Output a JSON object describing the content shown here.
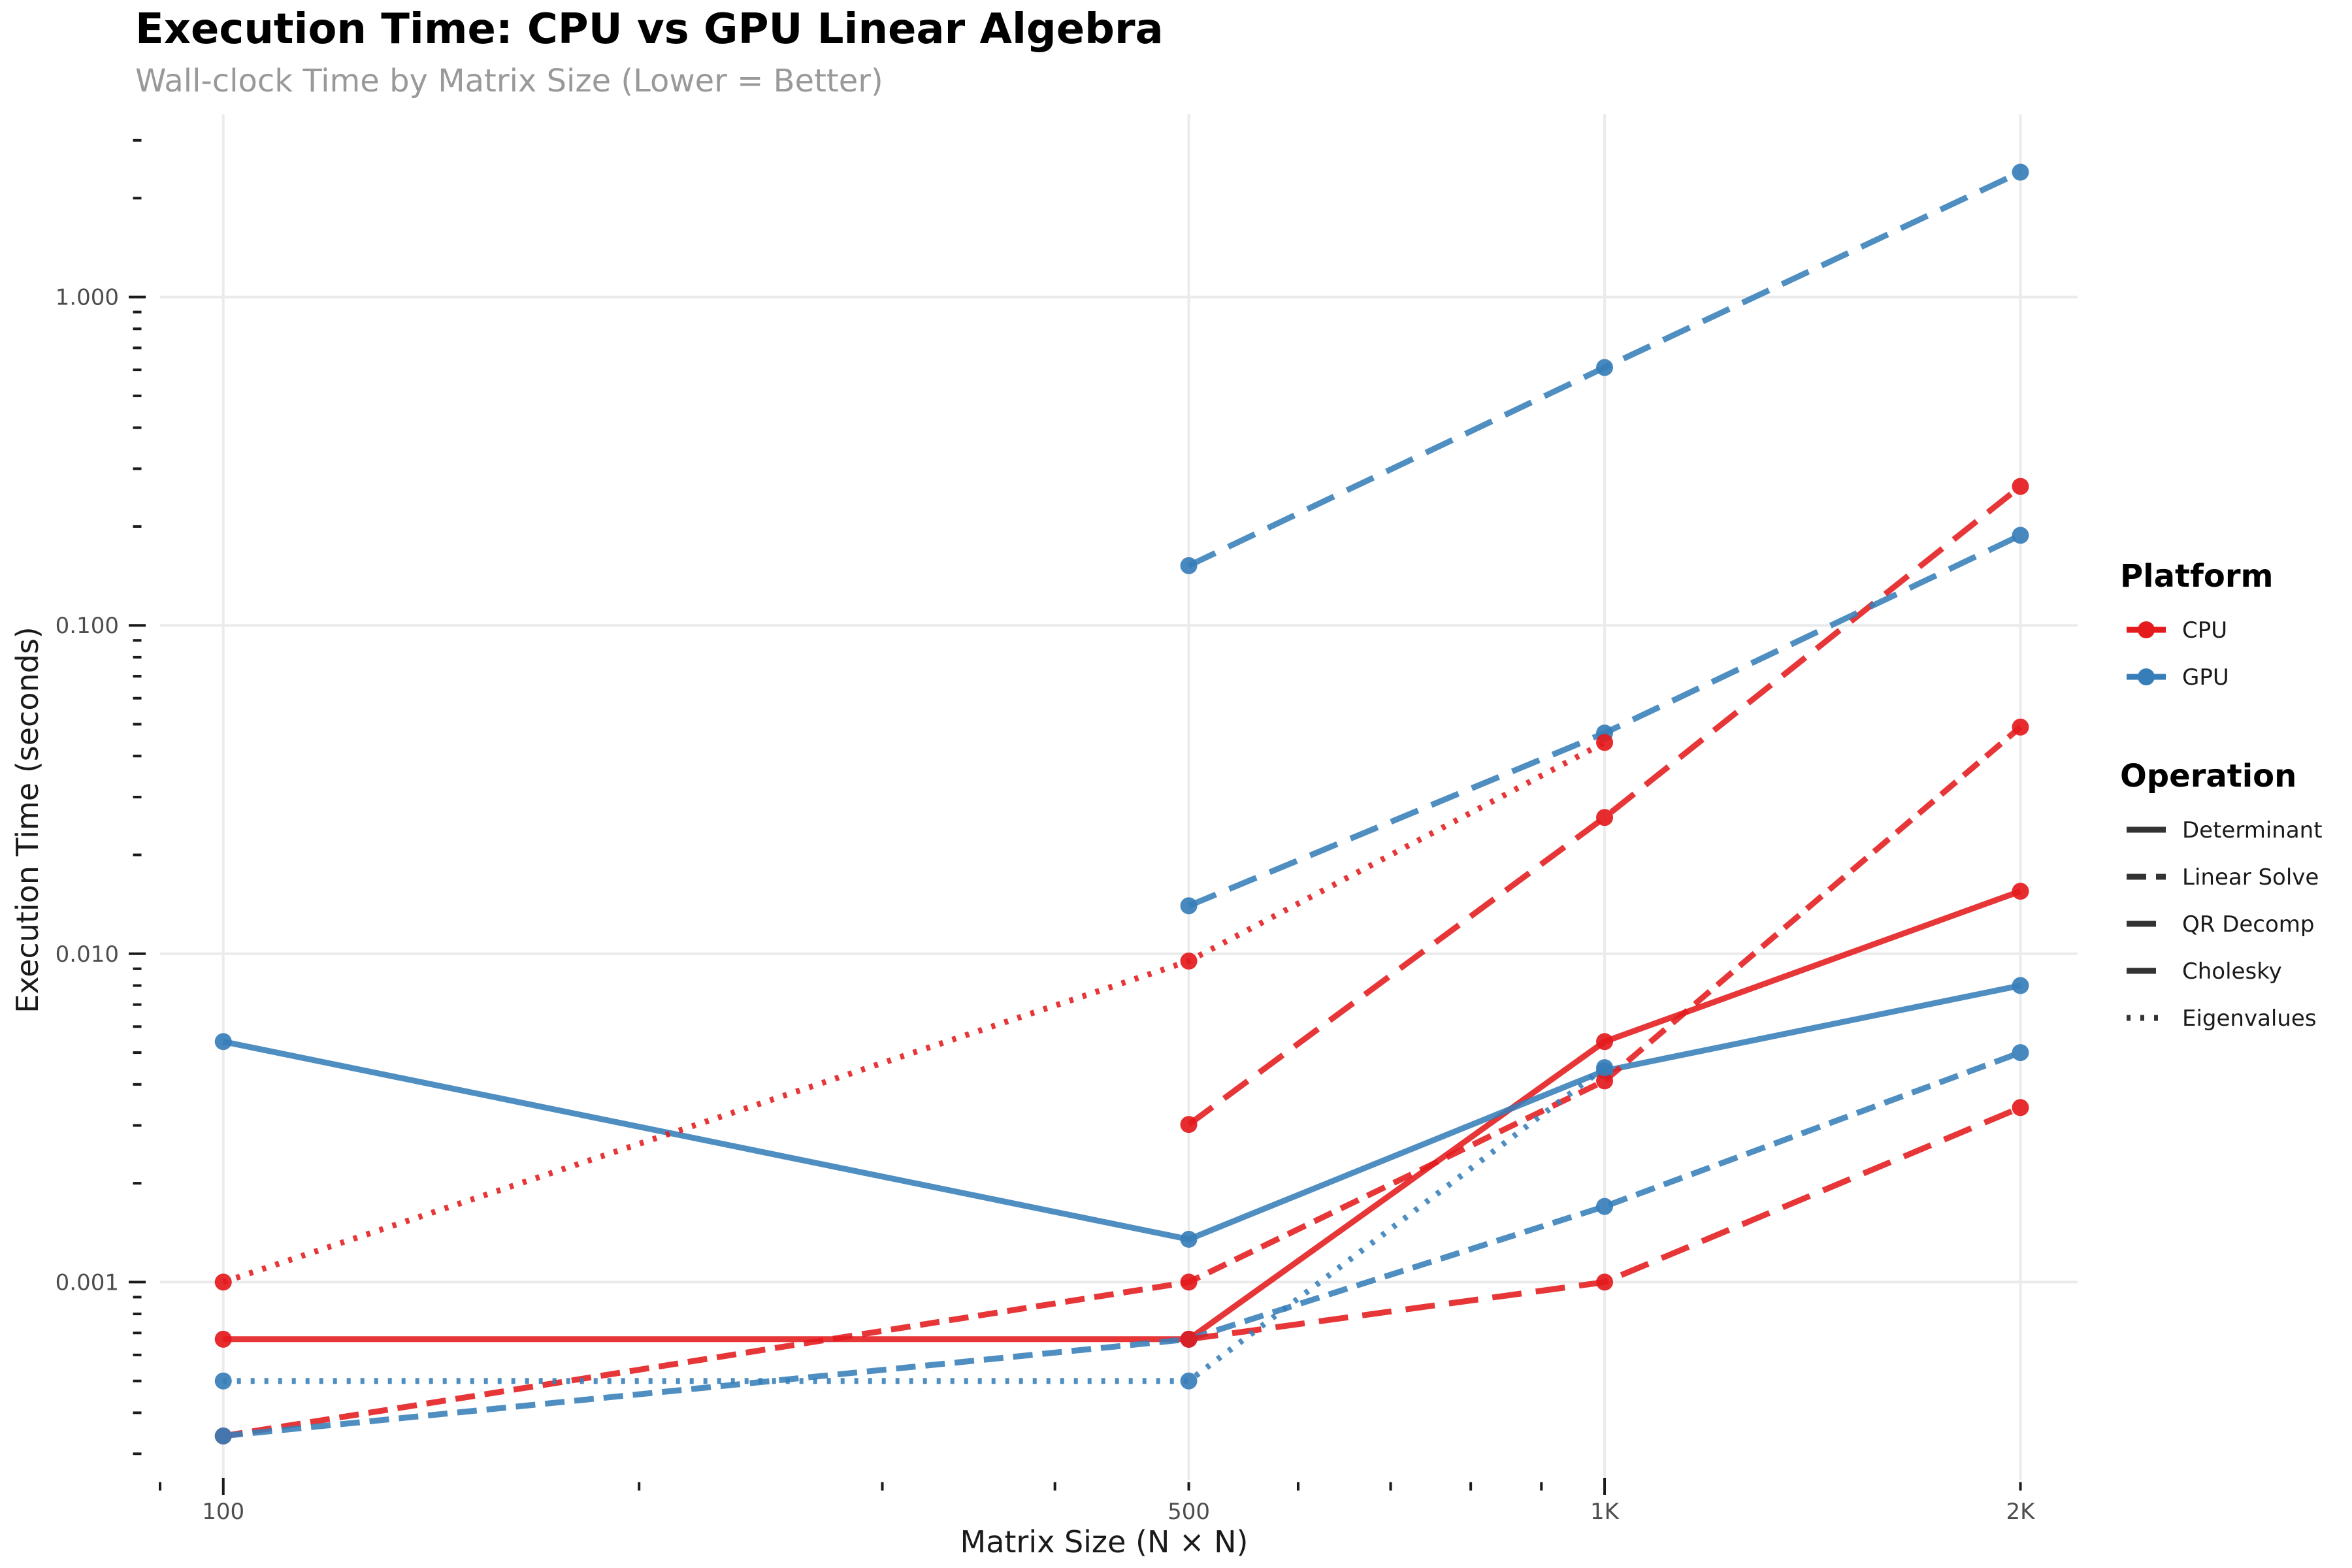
{
  "chart_data": {
    "type": "line",
    "title": "Execution Time: CPU vs GPU Linear Algebra",
    "subtitle": "Wall-clock Time by Matrix Size (Lower = Better)",
    "xlabel": "Matrix Size (N × N)",
    "ylabel": "Execution Time (seconds)",
    "x_scale": "log",
    "y_scale": "log",
    "x_ticks": [
      {
        "value": 100,
        "label": "100"
      },
      {
        "value": 500,
        "label": "500"
      },
      {
        "value": 1000,
        "label": "1K"
      },
      {
        "value": 2000,
        "label": "2K"
      }
    ],
    "y_ticks": [
      {
        "value": 0.001,
        "label": "0.001"
      },
      {
        "value": 0.01,
        "label": "0.010"
      },
      {
        "value": 0.1,
        "label": "0.100"
      },
      {
        "value": 1,
        "label": "1.000"
      }
    ],
    "xlim": [
      90,
      2200
    ],
    "ylim": [
      0.00025,
      3.6
    ],
    "grid": true,
    "legend_position": "right",
    "colors": {
      "CPU": "#e41a1c",
      "GPU": "#377eb8"
    },
    "legend": {
      "platform_title": "Platform",
      "platform_items": [
        {
          "label": "CPU",
          "color": "#e41a1c"
        },
        {
          "label": "GPU",
          "color": "#377eb8"
        }
      ],
      "operation_title": "Operation",
      "operation_items": [
        {
          "label": "Determinant",
          "dash": "solid"
        },
        {
          "label": "Linear Solve",
          "dash": "dashed"
        },
        {
          "label": "QR Decomp",
          "dash": "longdash"
        },
        {
          "label": "Cholesky",
          "dash": "longdash"
        },
        {
          "label": "Eigenvalues",
          "dash": "dotted"
        }
      ]
    },
    "series": [
      {
        "platform": "CPU",
        "operation": "Determinant",
        "dash": "solid",
        "points": [
          {
            "x": 100,
            "y": 0.00067
          },
          {
            "x": 500,
            "y": 0.00067
          },
          {
            "x": 1000,
            "y": 0.0054
          },
          {
            "x": 2000,
            "y": 0.0155
          }
        ]
      },
      {
        "platform": "GPU",
        "operation": "Determinant",
        "dash": "solid",
        "points": [
          {
            "x": 100,
            "y": 0.0054
          },
          {
            "x": 500,
            "y": 0.00135
          },
          {
            "x": 1000,
            "y": 0.0044
          },
          {
            "x": 2000,
            "y": 0.008
          }
        ]
      },
      {
        "platform": "CPU",
        "operation": "Linear Solve",
        "dash": "dashed",
        "points": [
          {
            "x": 100,
            "y": 0.00034
          },
          {
            "x": 500,
            "y": 0.001
          },
          {
            "x": 1000,
            "y": 0.0041
          },
          {
            "x": 2000,
            "y": 0.049
          }
        ]
      },
      {
        "platform": "GPU",
        "operation": "Linear Solve",
        "dash": "dashed",
        "points": [
          {
            "x": 100,
            "y": 0.00034
          },
          {
            "x": 500,
            "y": 0.00067
          },
          {
            "x": 1000,
            "y": 0.0017
          },
          {
            "x": 2000,
            "y": 0.005
          }
        ]
      },
      {
        "platform": "CPU",
        "operation": "QR Decomp",
        "dash": "longdash",
        "points": [
          {
            "x": 500,
            "y": 0.00302
          },
          {
            "x": 1000,
            "y": 0.026
          },
          {
            "x": 2000,
            "y": 0.265
          }
        ]
      },
      {
        "platform": "GPU",
        "operation": "QR Decomp",
        "dash": "longdash",
        "points": [
          {
            "x": 500,
            "y": 0.014
          },
          {
            "x": 1000,
            "y": 0.047
          },
          {
            "x": 2000,
            "y": 0.188
          }
        ]
      },
      {
        "platform": "CPU",
        "operation": "Cholesky",
        "dash": "longdash",
        "points": [
          {
            "x": 500,
            "y": 0.00067
          },
          {
            "x": 1000,
            "y": 0.001
          },
          {
            "x": 2000,
            "y": 0.0034
          }
        ]
      },
      {
        "platform": "GPU",
        "operation": "Cholesky",
        "dash": "longdash",
        "points": [
          {
            "x": 500,
            "y": 0.152
          },
          {
            "x": 1000,
            "y": 0.61
          },
          {
            "x": 2000,
            "y": 2.4
          }
        ]
      },
      {
        "platform": "CPU",
        "operation": "Eigenvalues",
        "dash": "dotted",
        "points": [
          {
            "x": 100,
            "y": 0.001
          },
          {
            "x": 500,
            "y": 0.0095
          },
          {
            "x": 1000,
            "y": 0.044
          }
        ]
      },
      {
        "platform": "GPU",
        "operation": "Eigenvalues",
        "dash": "dotted",
        "points": [
          {
            "x": 100,
            "y": 0.0005
          },
          {
            "x": 500,
            "y": 0.0005
          },
          {
            "x": 1000,
            "y": 0.0045
          }
        ]
      }
    ]
  }
}
